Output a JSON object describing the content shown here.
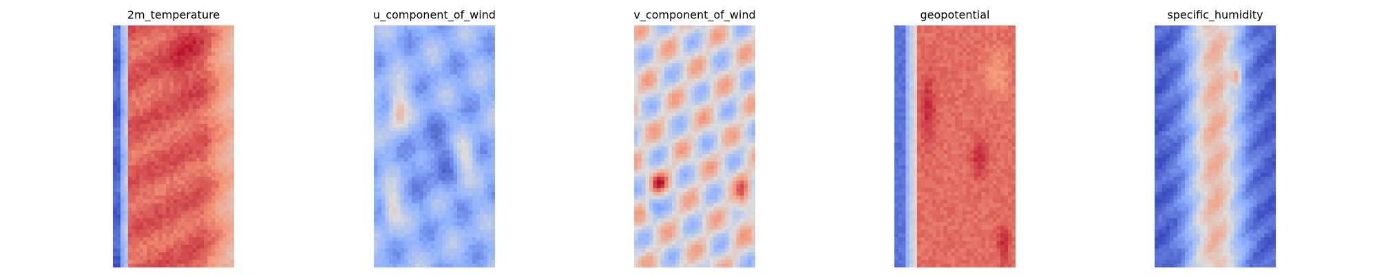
{
  "figure": {
    "panels": [
      {
        "title": "2m_temperature"
      },
      {
        "title": "u_component_of_wind"
      },
      {
        "title": "v_component_of_wind"
      },
      {
        "title": "geopotential"
      },
      {
        "title": "specific_humidity"
      }
    ]
  },
  "chart_data": [
    {
      "type": "heatmap",
      "title": "2m_temperature",
      "colormap": "coolwarm",
      "axes": "off",
      "pattern": "cold (blue) strip on the left edge, warm (red) body, darkest red near the top center, lighter salmon toward the right edge"
    },
    {
      "type": "heatmap",
      "title": "u_component_of_wind",
      "colormap": "coolwarm",
      "axes": "off",
      "pattern": "mostly blue with scattered red streaks, strongest red along the left side"
    },
    {
      "type": "heatmap",
      "title": "v_component_of_wind",
      "colormap": "coolwarm",
      "axes": "off",
      "pattern": "noisy mixture of light red and light blue patches, darker red spots scattered"
    },
    {
      "type": "heatmap",
      "title": "geopotential",
      "colormap": "coolwarm",
      "axes": "off",
      "pattern": "blue strip on the left edge, red body with darker red blobs along the left-center and bottom-right"
    },
    {
      "type": "heatmap",
      "title": "specific_humidity",
      "colormap": "coolwarm",
      "axes": "off",
      "pattern": "blue edges on both sides, light red central band with a dark red spot near the top center"
    }
  ]
}
